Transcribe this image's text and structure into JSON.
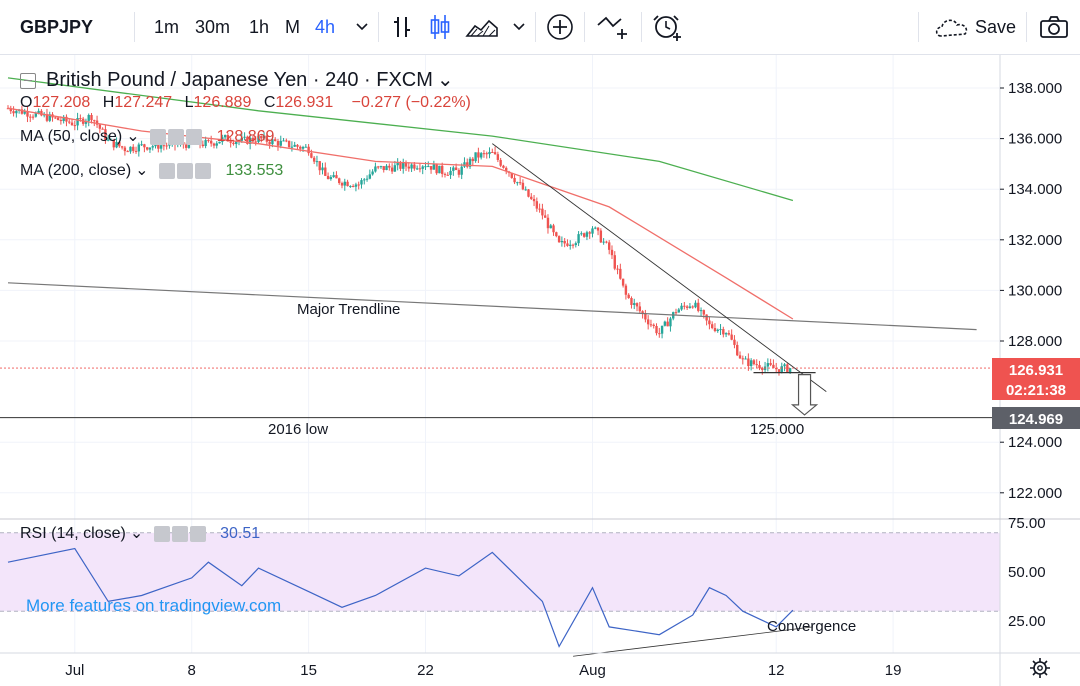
{
  "toolbar": {
    "symbol": "GBPJPY",
    "intervals": [
      "1m",
      "30m",
      "1h",
      "M",
      "4h"
    ],
    "active_interval": "4h",
    "save_label": "Save"
  },
  "legend": {
    "title": "British Pound / Japanese Yen · 240 · FXCM",
    "ohlc": [
      {
        "k": "O",
        "v": "127.208"
      },
      {
        "k": "H",
        "v": "127.247"
      },
      {
        "k": "L",
        "v": "126.889"
      },
      {
        "k": "C",
        "v": "126.931"
      }
    ],
    "change": "−0.277 (−0.22%)",
    "ma50_label": "MA (50, close)",
    "ma50_value": "128.869",
    "ma200_label": "MA (200, close)",
    "ma200_value": "133.553",
    "rsi_label": "RSI (14, close)",
    "rsi_value": "30.51"
  },
  "watermark": "More features on tradingview.com",
  "annotations": {
    "major_trendline": "Major Trendline",
    "low_2016": "2016 low",
    "target": "125.000",
    "convergence": "Convergence"
  },
  "price_tags": {
    "last": "126.931",
    "countdown": "02:21:38",
    "line_2016": "124.969"
  },
  "colors": {
    "up": "#26a69a",
    "down": "#ef5350",
    "ma50": "#f06f6a",
    "ma200": "#4caf50",
    "rsi": "#3d64c6",
    "rsi_band": "#f3e5fa",
    "legend_up": "#3f8f3f",
    "legend_down": "#d9443b"
  },
  "chart_data": {
    "type": "candlestick",
    "symbol": "GBPJPY",
    "timeframe": "240",
    "price_axis": {
      "min": 121.5,
      "max": 139.0,
      "ticks": [
        "138.000",
        "136.000",
        "134.000",
        "132.000",
        "130.000",
        "128.000",
        "124.000",
        "122.000"
      ]
    },
    "time_axis_labels": [
      "Jul",
      "8",
      "15",
      "22",
      "Aug",
      "12",
      "19"
    ],
    "close_path": [
      {
        "date": "2019-06-27",
        "close": 137.2
      },
      {
        "date": "2019-07-01",
        "close": 136.6
      },
      {
        "date": "2019-07-02",
        "close": 136.9
      },
      {
        "date": "2019-07-03",
        "close": 135.9
      },
      {
        "date": "2019-07-04",
        "close": 135.6
      },
      {
        "date": "2019-07-05",
        "close": 135.7
      },
      {
        "date": "2019-07-08",
        "close": 135.8
      },
      {
        "date": "2019-07-09",
        "close": 135.8
      },
      {
        "date": "2019-07-10",
        "close": 136.0
      },
      {
        "date": "2019-07-11",
        "close": 135.9
      },
      {
        "date": "2019-07-12",
        "close": 136.0
      },
      {
        "date": "2019-07-15",
        "close": 135.6
      },
      {
        "date": "2019-07-16",
        "close": 134.5
      },
      {
        "date": "2019-07-17",
        "close": 134.3
      },
      {
        "date": "2019-07-18",
        "close": 134.2
      },
      {
        "date": "2019-07-19",
        "close": 134.8
      },
      {
        "date": "2019-07-22",
        "close": 135.0
      },
      {
        "date": "2019-07-23",
        "close": 134.7
      },
      {
        "date": "2019-07-24",
        "close": 134.7
      },
      {
        "date": "2019-07-25",
        "close": 135.3
      },
      {
        "date": "2019-07-26",
        "close": 135.4
      },
      {
        "date": "2019-07-27",
        "close": 134.7
      },
      {
        "date": "2019-07-29",
        "close": 133.0
      },
      {
        "date": "2019-07-30",
        "close": 131.8
      },
      {
        "date": "2019-07-31",
        "close": 132.0
      },
      {
        "date": "2019-08-01",
        "close": 132.5
      },
      {
        "date": "2019-08-02",
        "close": 131.6
      },
      {
        "date": "2019-08-03",
        "close": 129.8
      },
      {
        "date": "2019-08-05",
        "close": 128.3
      },
      {
        "date": "2019-08-06",
        "close": 129.2
      },
      {
        "date": "2019-08-07",
        "close": 129.5
      },
      {
        "date": "2019-08-08",
        "close": 128.6
      },
      {
        "date": "2019-08-09",
        "close": 128.4
      },
      {
        "date": "2019-08-10",
        "close": 127.2
      },
      {
        "date": "2019-08-12",
        "close": 126.9
      },
      {
        "date": "2019-08-13",
        "close": 126.93
      }
    ],
    "ma50": [
      {
        "date": "2019-06-27",
        "value": 137.2
      },
      {
        "date": "2019-07-05",
        "value": 136.3
      },
      {
        "date": "2019-07-12",
        "value": 135.8
      },
      {
        "date": "2019-07-19",
        "value": 135.1
      },
      {
        "date": "2019-07-26",
        "value": 134.9
      },
      {
        "date": "2019-08-02",
        "value": 133.3
      },
      {
        "date": "2019-08-09",
        "value": 130.5
      },
      {
        "date": "2019-08-13",
        "value": 128.869
      }
    ],
    "ma200": [
      {
        "date": "2019-06-27",
        "value": 138.4
      },
      {
        "date": "2019-07-12",
        "value": 137.1
      },
      {
        "date": "2019-07-26",
        "value": 136.1
      },
      {
        "date": "2019-08-05",
        "value": 135.1
      },
      {
        "date": "2019-08-13",
        "value": 133.553
      }
    ],
    "rsi": {
      "axis_ticks": [
        "75.00",
        "50.00",
        "25.00"
      ],
      "band": [
        30,
        70
      ],
      "values": [
        {
          "date": "2019-06-27",
          "value": 55
        },
        {
          "date": "2019-07-01",
          "value": 62
        },
        {
          "date": "2019-07-03",
          "value": 35
        },
        {
          "date": "2019-07-05",
          "value": 38
        },
        {
          "date": "2019-07-08",
          "value": 47
        },
        {
          "date": "2019-07-09",
          "value": 55
        },
        {
          "date": "2019-07-11",
          "value": 43
        },
        {
          "date": "2019-07-12",
          "value": 52
        },
        {
          "date": "2019-07-15",
          "value": 40
        },
        {
          "date": "2019-07-17",
          "value": 32
        },
        {
          "date": "2019-07-19",
          "value": 38
        },
        {
          "date": "2019-07-22",
          "value": 52
        },
        {
          "date": "2019-07-24",
          "value": 48
        },
        {
          "date": "2019-07-26",
          "value": 60
        },
        {
          "date": "2019-07-29",
          "value": 35
        },
        {
          "date": "2019-07-30",
          "value": 12
        },
        {
          "date": "2019-08-01",
          "value": 42
        },
        {
          "date": "2019-08-02",
          "value": 22
        },
        {
          "date": "2019-08-05",
          "value": 18
        },
        {
          "date": "2019-08-07",
          "value": 28
        },
        {
          "date": "2019-08-08",
          "value": 42
        },
        {
          "date": "2019-08-09",
          "value": 38
        },
        {
          "date": "2019-08-10",
          "value": 30
        },
        {
          "date": "2019-08-12",
          "value": 22
        },
        {
          "date": "2019-08-13",
          "value": 30.51
        }
      ]
    },
    "levels": [
      {
        "label": "Major Trendline",
        "type": "trendline",
        "from": {
          "date": "2019-06-27",
          "value": 130.3
        },
        "to": {
          "date": "2019-08-24",
          "value": 128.45
        }
      },
      {
        "label": "2016 low",
        "type": "horizontal",
        "value": 124.969
      },
      {
        "label": "descending trendline",
        "type": "trendline",
        "from": {
          "date": "2019-07-26",
          "value": 135.8
        },
        "to": {
          "date": "2019-08-15",
          "value": 126.0
        }
      },
      {
        "label": "125.000",
        "type": "target-arrow",
        "value": 125.0
      }
    ]
  }
}
